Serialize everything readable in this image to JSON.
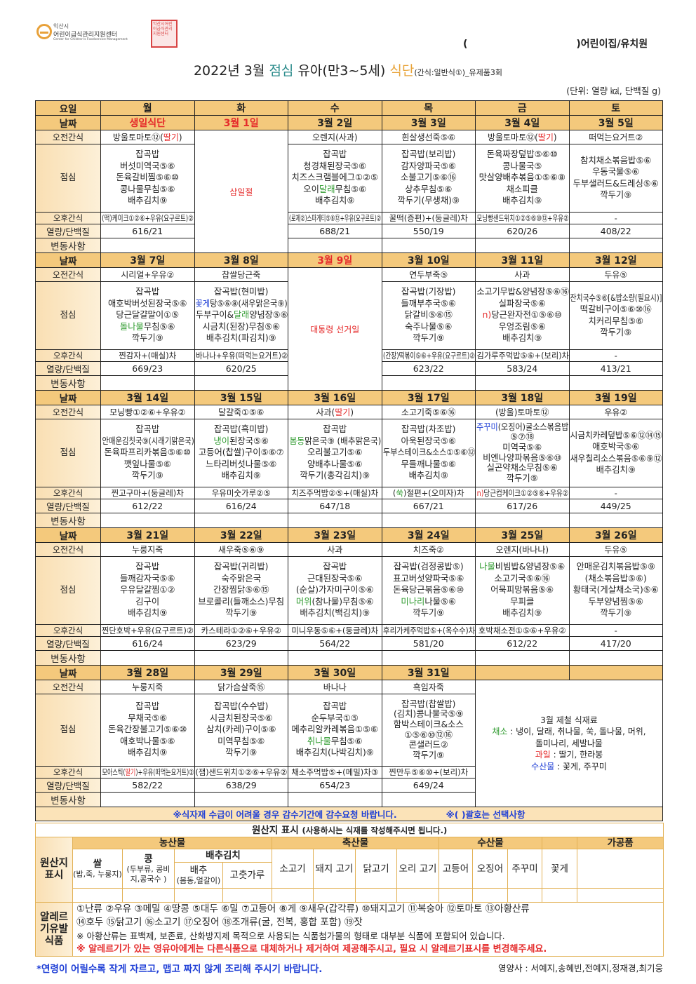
{
  "header": {
    "logo_city": "익산시",
    "logo_name": "어린이급식관리지원센터",
    "logo_english": "Center for Children's Foodservice Management",
    "seal_text": "익산시어린이급식관리지원센터",
    "school_open": "(",
    "school_suffix": ")어린이집/유치원",
    "title_part1": "2022년 3월",
    "title_meal": "점심",
    "title_part2": "유아(만3~5세)",
    "title_menu": "식단",
    "title_sub": "(간식:일반식①)_유제품3회",
    "unit": "(단위: 열량 ㎉, 단백질 g)"
  },
  "colors": {
    "red": "#e52b2b",
    "green": "#2f9b2f",
    "blue": "#1f3fd6",
    "header_bg": "#f4c97c",
    "label_bg": "#fbe3b8"
  },
  "menu": {
    "day_label": "요일",
    "days": [
      "월",
      "화",
      "수",
      "목",
      "금",
      "토"
    ],
    "row_labels": {
      "date": "날짜",
      "am": "오전간식",
      "lunch": "점심",
      "pm": "오후간식",
      "nutrition": "열량/단백질",
      "change": "변동사항"
    },
    "weeks": [
      {
        "days": [
          {
            "date": "생일식단",
            "date_red": true,
            "am": [
              "방울토마토⑫(",
              [
                "딸기",
                "red"
              ],
              ")"
            ],
            "lunch": [
              "잡곡밥",
              "버섯미역국⑤⑥",
              "돈육갈비찜⑤⑥⑩",
              "콩나물무침⑤⑥",
              "배추김치⑨"
            ],
            "pm": "(떡)케이크①②⑥+우유(요구르트)②",
            "nutrition": "616/21"
          },
          {
            "date": "3월 1일",
            "date_red": true,
            "holiday": "삼일절"
          },
          {
            "date": "3월 2일",
            "am": "오렌지(사과)",
            "lunch": [
              "잡곡밥",
              "청경채된장국⑤⑥",
              "치즈스크램블에그①②⑤",
              [
                "오이",
                [
                  "달래",
                  "green"
                ],
                "무침⑤⑥"
              ],
              "배추김치⑨"
            ],
            "pm": "(로제②)스파게티⑤⑥⑫+우유(요구르트)②",
            "nutrition": "688/21"
          },
          {
            "date": "3월 3일",
            "am": "흰살생선죽⑤⑥",
            "lunch": [
              "잡곡밥(보리밥)",
              "감자양파국⑤⑥",
              "소불고기⑤⑥⑯",
              "상추무침⑤⑥",
              "깍두기(무생채)⑨"
            ],
            "pm": "꿀떡(증편)+(둥글레)차",
            "nutrition": "550/19"
          },
          {
            "date": "3월 4일",
            "am": [
              "방울토마토⑫(",
              [
                "딸기",
                "red"
              ],
              ")"
            ],
            "lunch": [
              "돈육짜장덮밥⑤⑥⑩",
              "콩나물국⑤",
              "맛살양배추볶음①⑤⑥⑧",
              "채소피클",
              "배추김치⑨"
            ],
            "pm": "모닝빵샌드위치①②⑤⑥⑩⑫+우유②",
            "nutrition": "620/26"
          },
          {
            "date": "3월 5일",
            "am": "떠먹는요거트②",
            "lunch": [
              "참치채소볶음밥⑤⑥",
              "우동국물⑤⑥",
              "두부샐러드&드레싱⑤⑥",
              "깍두기⑨"
            ],
            "pm": "-",
            "nutrition": "408/22"
          }
        ]
      },
      {
        "days": [
          {
            "date": "3월 7일",
            "am": "시리얼+우유②",
            "lunch": [
              "잡곡밥",
              "애호박버섯된장국⑤⑥",
              "당근달걀말이①⑤",
              [
                [
                  "돌나물",
                  "green"
                ],
                "무침⑤⑥"
              ],
              "깍두기⑨"
            ],
            "pm": "찐감자+(매실)차",
            "nutrition": "669/23"
          },
          {
            "date": "3월 8일",
            "am": "찹쌀당근죽",
            "lunch": [
              "잡곡밥(현미밥)",
              [
                [
                  "꽃게",
                  "blue"
                ],
                "탕⑤⑥⑧(새우맑은국⑨)"
              ],
              [
                "두부구이&",
                [
                  "달래",
                  "green"
                ],
                "양념장⑤⑥"
              ],
              "시금치(된장)무침⑤⑥",
              "배추김치(파김치)⑨"
            ],
            "pm": "바나나+우유(떠먹는요거트)②",
            "nutrition": "620/25"
          },
          {
            "date": "3월 9일",
            "date_red": true,
            "holiday": "대통령 선거일"
          },
          {
            "date": "3월 10일",
            "am": "연두부죽⑤",
            "lunch": [
              "잡곡밥(기장밥)",
              "들깨부추국⑤⑥",
              "닭갈비⑤⑥⑮",
              "숙주나물⑤⑥",
              "깍두기⑨"
            ],
            "pm": "(간장)떡볶이⑤⑥+우유(요구르트)②",
            "nutrition": "623/22"
          },
          {
            "date": "3월 11일",
            "am": "사과",
            "lunch": [
              "소고기무밥&양념장⑤⑥⑯",
              "실파장국⑤⑥",
              [
                [
                  "n)",
                  "red"
                ],
                "당근완자전①⑤⑥⑩"
              ],
              "우엉조림⑤⑥",
              "배추김치⑨"
            ],
            "pm": "김가루주먹밥⑤⑥+(보리)차",
            "nutrition": "583/24"
          },
          {
            "date": "3월 12일",
            "am": "두유⑤",
            "lunch": [
              "잔치국수⑤⑥[&밥소량(필요시)]",
              "떡갈비구이⑤⑥⑩⑯",
              "치커리무침⑤⑥",
              "깍두기⑨"
            ],
            "pm": "-",
            "nutrition": "413/21"
          }
        ]
      },
      {
        "days": [
          {
            "date": "3월 14일",
            "am": "모닝빵①②⑥+우유②",
            "lunch": [
              "잡곡밥",
              "안매운김칫국⑨(시래기맑은국)",
              "돈육파프리카볶음⑤⑥⑩",
              "깻잎나물⑤⑥",
              "깍두기⑨"
            ],
            "pm": "찐고구마+(둥글레)차",
            "nutrition": "612/22"
          },
          {
            "date": "3월 15일",
            "am": "달걀죽①⑤⑥",
            "lunch": [
              "잡곡밥(흑미밥)",
              [
                [
                  "냉이",
                  "green"
                ],
                "된장국⑤⑥"
              ],
              "고등어(찹쌀)구이⑤⑥⑦",
              "느타리버섯나물⑤⑥",
              "배추김치⑨"
            ],
            "pm": "우유미숫가루②⑤",
            "nutrition": "616/24"
          },
          {
            "date": "3월 16일",
            "am": [
              "사과(",
              [
                "딸기",
                "red"
              ],
              ")"
            ],
            "lunch": [
              "잡곡밥",
              [
                [
                  "봄동",
                  "green"
                ],
                "맑은국⑨ (배추맑은국)"
              ],
              "오리불고기⑤⑥",
              "양배추나물⑤⑥",
              "깍두기(총각김치)⑨"
            ],
            "pm": "치즈주먹밥②⑤+(매실)차",
            "nutrition": "647/18"
          },
          {
            "date": "3월 17일",
            "am": "소고기죽⑤⑥⑯",
            "lunch": [
              "잡곡밥(차조밥)",
              "아욱된장국⑤⑥",
              "두부스테이크&소스①⑤⑥⑫",
              "무들깨나물⑤⑥",
              "배추김치⑨"
            ],
            "pm": [
              "(",
              [
                "쑥",
                "green"
              ],
              ")절편+(오미자)차"
            ],
            "nutrition": "667/21"
          },
          {
            "date": "3월 18일",
            "am": "(방울)토마토⑫",
            "lunch": [
              [
                [
                  "주꾸미",
                  "blue"
                ],
                "(오징어)굴소스볶음밥"
              ],
              "⑤⑦⑱",
              "미역국⑤⑥",
              "비엔나양파볶음⑤⑥⑩",
              "실곤약채소무침⑤⑥",
              "깍두기⑨"
            ],
            "pm": [
              [
                "n)",
                "red"
              ],
              "당근컵케이크①②⑤⑥+우유②"
            ],
            "nutrition": "617/26"
          },
          {
            "date": "3월 19일",
            "am": "우유②",
            "lunch": [
              "시금치카레덮밥⑤⑥⑫⑭⑮",
              "애호박국⑤⑥",
              "새우칠리소스볶음⑤⑥⑨⑫",
              "배추김치⑨"
            ],
            "pm": "-",
            "nutrition": "449/25"
          }
        ]
      },
      {
        "days": [
          {
            "date": "3월 21일",
            "am": "누룽지죽",
            "lunch": [
              "잡곡밥",
              "들깨감자국⑤⑥",
              "우유달걀찜①②",
              "김구이",
              "배추김치⑨"
            ],
            "pm": "찐단호박+우유(요구르트)②",
            "nutrition": "616/24"
          },
          {
            "date": "3월 22일",
            "am": "새우죽⑤⑥⑨",
            "lunch": [
              "잡곡밥(귀리밥)",
              "숙주맑은국",
              "간장찜닭⑤⑥⑮",
              "브로콜리(들깨소스)무침",
              "깍두기⑨"
            ],
            "pm": "카스테라①②⑥+우유②",
            "nutrition": "623/29"
          },
          {
            "date": "3월 23일",
            "am": "사과",
            "lunch": [
              "잡곡밥",
              "근대된장국⑤⑥",
              "(순살)가자미구이⑤⑥",
              [
                [
                  "머위",
                  "green"
                ],
                "(참나물)무침⑤⑥"
              ],
              "배추김치(백김치)⑨"
            ],
            "pm": "미니우동⑤⑥+(둥글레)차",
            "nutrition": "564/22"
          },
          {
            "date": "3월 24일",
            "am": "치즈죽②",
            "lunch": [
              "잡곡밥(검정콩밥⑤)",
              "표고버섯양파국⑤⑥",
              "돈육당근볶음⑤⑥⑩",
              [
                [
                  "미나리",
                  "green"
                ],
                "나물⑤⑥"
              ],
              "깍두기⑨"
            ],
            "pm": "후리가케주먹밥⑤+(옥수수)차",
            "nutrition": "581/20"
          },
          {
            "date": "3월 25일",
            "am": "오렌지(바나나)",
            "lunch": [
              [
                [
                  "나물",
                  "green"
                ],
                "비빔밥&양념장⑤⑥"
              ],
              "소고기국⑤⑥⑯",
              "어묵피망볶음⑤⑥",
              "무피클",
              "배추김치⑨"
            ],
            "pm": "호박채소전①⑤⑥+우유②",
            "nutrition": "612/22"
          },
          {
            "date": "3월 26일",
            "am": "두유⑤",
            "lunch": [
              "안매운김치볶음밥⑤⑨",
              "(채소볶음밥⑤⑥)",
              "황태국(게살채소국)⑤⑥",
              "두부양념찜⑤⑥",
              "깍두기⑨"
            ],
            "pm": "-",
            "nutrition": "417/20"
          }
        ]
      },
      {
        "days": [
          {
            "date": "3월 28일",
            "am": "누룽지죽",
            "lunch": [
              "잡곡밥",
              "무채국⑤⑥",
              "돈육간장불고기⑤⑥⑩",
              "애호박나물⑤⑥",
              "배추김치⑨"
            ],
            "pm": [
              "모아스틱(",
              [
                "딸기",
                "red"
              ],
              ")+우유(떠먹는요거트)②"
            ],
            "nutrition": "582/22"
          },
          {
            "date": "3월 29일",
            "am": "닭가슴살죽⑮",
            "lunch": [
              "잡곡밥(수수밥)",
              "시금치된장국⑤⑥",
              "삼치(카레)구이⑤⑥",
              "미역무침⑤⑥",
              "깍두기⑨"
            ],
            "pm": "(잼)샌드위치①②⑥+우유②",
            "nutrition": "638/29"
          },
          {
            "date": "3월 30일",
            "am": "바나나",
            "lunch": [
              "잡곡밥",
              "순두부국①⑤",
              "메추리알카레볶음①⑤⑥",
              [
                [
                  "취나물",
                  "green"
                ],
                "무침⑤⑥"
              ],
              "배추김치(나박김치)⑨"
            ],
            "pm": "채소주먹밥⑤+(메밀)차③",
            "nutrition": "654/23"
          },
          {
            "date": "3월 31일",
            "am": "흑임자죽",
            "lunch": [
              "잡곡밥(찹쌀밥)",
              "(김치)콩나물국⑤⑨",
              "함박스테이크&소스",
              "①⑤⑥⑩⑫⑯",
              "콘샐러드②",
              "깍두기⑨"
            ],
            "pm": "찐만두⑤⑥⑩+(보리)차",
            "nutrition": "649/24"
          },
          {
            "date": "",
            "seasonal": [
              "3월 제철 식재료",
              [
                [
                  "채소",
                  "green"
                ],
                " : 냉이, 달래, 취나물, 쑥, 돌나물, 머위,"
              ],
              "돌미나리, 세발나물",
              [
                [
                  "과일",
                  "red"
                ],
                " : 딸기, 한라봉"
              ],
              [
                [
                  "수산물",
                  "blue"
                ],
                " : 꽃게, 주꾸미"
              ]
            ]
          },
          {
            "date": ""
          }
        ]
      }
    ],
    "note_left": "※식자재 수급이 어려울 경우 감수기간에 감수요청 바랍니다.",
    "note_right": "※( )괄호는 선택사항"
  },
  "origin": {
    "title": "원산지 표시",
    "title_hint": "(사용하시는 식재를 작성해주시면 됩니다.)",
    "label": "원산지 표시",
    "categories": {
      "agri": "농산물",
      "livestock": "축산물",
      "seafood": "수산물",
      "processed": "가공품"
    },
    "items": {
      "rice": "쌀",
      "rice_sub": "(밥,죽, 누룽지)",
      "bean": "콩",
      "bean_sub": "(두부류, 콩비지,콩국수 )",
      "kimchi": "배추김치",
      "cabbage": "배추",
      "cabbage_sub": "(봄동,얼갈이)",
      "pepper": "고춧가루",
      "beef": "소고기",
      "pork": "돼지 고기",
      "chicken": "닭고기",
      "duck": "오리 고기",
      "mackerel": "고등어",
      "squid": "오징어",
      "webfoot": "주꾸미",
      "crab": "꽃게"
    }
  },
  "allergy": {
    "label": "알레르기유발식품",
    "line1": "①난류 ②우유 ③메밀 ④땅콩 ⑤대두 ⑥밀 ⑦고등어 ⑧게 ⑨새우(갑각류) ⑩돼지고기 ⑪복숭아 ⑫토마토 ⑬아황산류",
    "line2": "⑭호두 ⑮닭고기 ⑯소고기 ⑰오징어 ⑱조개류(굴, 전복, 홍합 포함) ⑲잣",
    "note": "※ 아황산류는 표백제, 보존료, 산화방지제 목적으로 사용되는 식품첨가물의 형태로 대부분 식품에 포함되어 있습니다.",
    "warning": "※ 알레르기가 있는 영유아에게는 다른식품으로 대체하거나 제거하여 제공해주시고, 필요 시 알레르기표시를 변경해주세요."
  },
  "footer": {
    "advice": "*연령이 어릴수록 작게 자르고, 맵고 짜지 않게 조리해 주시기 바랍니다.",
    "dietitians": "영양사 : 서예지,송혜빈,전예지,정재경,최기웅"
  }
}
